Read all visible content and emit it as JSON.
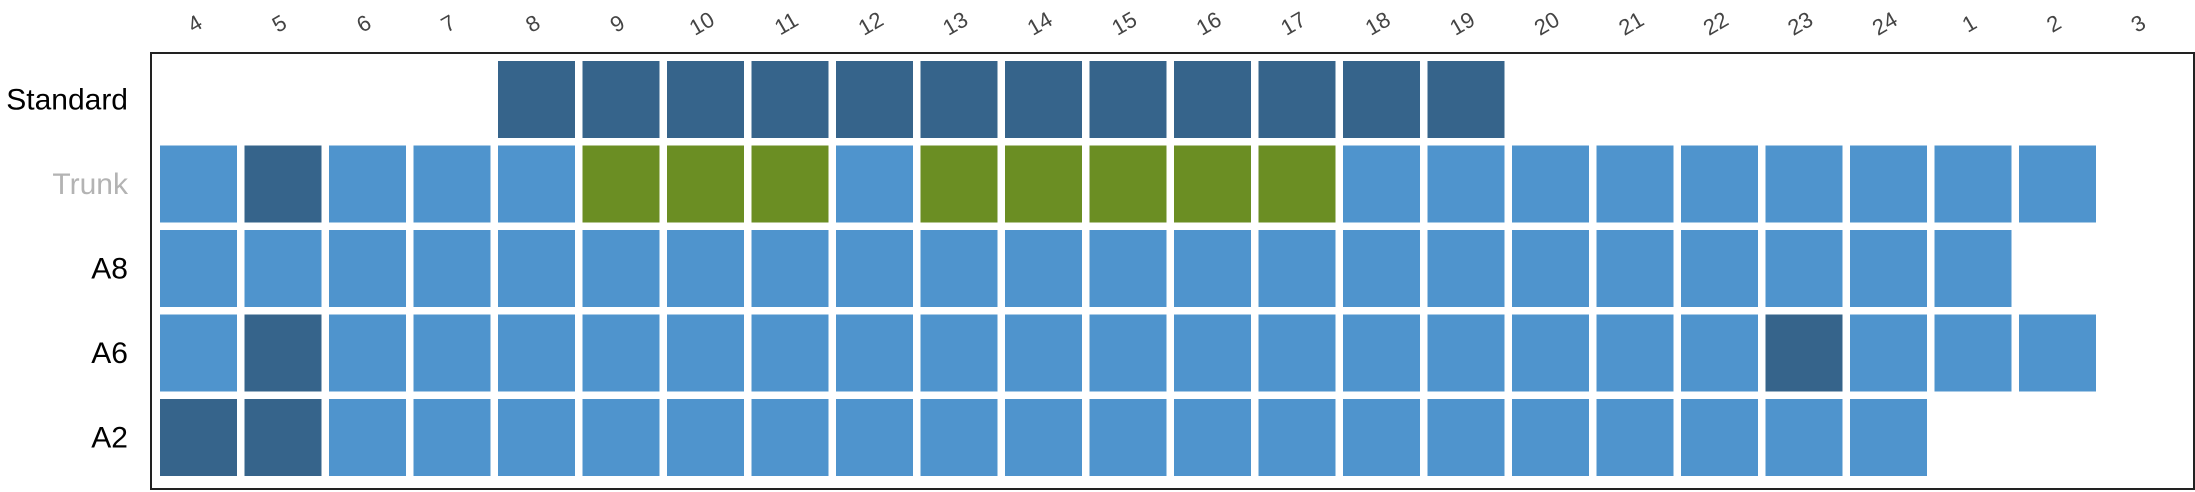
{
  "chart_data": {
    "type": "heatmap",
    "columns": [
      "4",
      "5",
      "6",
      "7",
      "8",
      "9",
      "10",
      "11",
      "12",
      "13",
      "14",
      "15",
      "16",
      "17",
      "18",
      "19",
      "20",
      "21",
      "22",
      "23",
      "24",
      "1",
      "2",
      "3"
    ],
    "rows": [
      "Standard",
      "Trunk",
      "A8",
      "A6",
      "A2"
    ],
    "row_label_colors": [
      "#000000",
      "#b3b3b3",
      "#000000",
      "#000000",
      "#000000"
    ],
    "category_colors": {
      "dark": "#36648b",
      "light": "#4f94cd",
      "green": "#6b8e23"
    },
    "cells": [
      [
        null,
        null,
        null,
        null,
        "dark",
        "dark",
        "dark",
        "dark",
        "dark",
        "dark",
        "dark",
        "dark",
        "dark",
        "dark",
        "dark",
        "dark",
        null,
        null,
        null,
        null,
        null,
        null,
        null,
        null
      ],
      [
        "light",
        "dark",
        "light",
        "light",
        "light",
        "green",
        "green",
        "green",
        "light",
        "green",
        "green",
        "green",
        "green",
        "green",
        "light",
        "light",
        "light",
        "light",
        "light",
        "light",
        "light",
        "light",
        "light",
        null
      ],
      [
        "light",
        "light",
        "light",
        "light",
        "light",
        "light",
        "light",
        "light",
        "light",
        "light",
        "light",
        "light",
        "light",
        "light",
        "light",
        "light",
        "light",
        "light",
        "light",
        "light",
        "light",
        "light",
        null,
        null
      ],
      [
        "light",
        "dark",
        "light",
        "light",
        "light",
        "light",
        "light",
        "light",
        "light",
        "light",
        "light",
        "light",
        "light",
        "light",
        "light",
        "light",
        "light",
        "light",
        "light",
        "dark",
        "light",
        "light",
        "light",
        null
      ],
      [
        "dark",
        "dark",
        "light",
        "light",
        "light",
        "light",
        "light",
        "light",
        "light",
        "light",
        "light",
        "light",
        "light",
        "light",
        "light",
        "light",
        "light",
        "light",
        "light",
        "light",
        "light",
        null,
        null,
        null
      ]
    ],
    "grid": false,
    "legend": "none"
  }
}
